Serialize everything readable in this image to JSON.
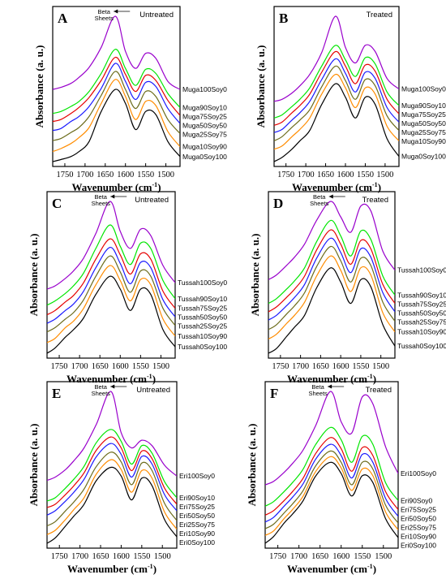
{
  "colors": [
    "#000000",
    "#ff8c00",
    "#6b6b1a",
    "#1a1aff",
    "#e60000",
    "#00e600",
    "#9900cc"
  ],
  "chart_data": [
    {
      "type": "line",
      "letter": "A",
      "condition": "Untreated",
      "xlabel": "Wavenumber (cm",
      "xlabel_sup": "-1",
      "xlabel_tail": ")",
      "ylabel": "Absorbance (a. u.)",
      "xlim": [
        1780,
        1465
      ],
      "xticks": [
        1750,
        1700,
        1650,
        1600,
        1550,
        1500
      ],
      "annotation": {
        "line1": "Beta",
        "line2": "Sheets",
        "x": 1625
      },
      "series": [
        {
          "name": "Muga0Soy100",
          "values": [
            0.0,
            0.02,
            0.05,
            0.1,
            0.2,
            0.5,
            0.72,
            0.58,
            0.32,
            0.5,
            0.47,
            0.2,
            0.05
          ]
        },
        {
          "name": "Muga10Soy90",
          "values": [
            0.1,
            0.13,
            0.18,
            0.24,
            0.34,
            0.58,
            0.82,
            0.65,
            0.42,
            0.6,
            0.56,
            0.3,
            0.15
          ]
        },
        {
          "name": "Muga25Soy75",
          "values": [
            0.21,
            0.23,
            0.29,
            0.34,
            0.45,
            0.66,
            0.9,
            0.72,
            0.53,
            0.7,
            0.65,
            0.42,
            0.28
          ]
        },
        {
          "name": "Muga50Soy50",
          "values": [
            0.31,
            0.33,
            0.4,
            0.45,
            0.55,
            0.73,
            0.98,
            0.8,
            0.62,
            0.79,
            0.75,
            0.53,
            0.38
          ]
        },
        {
          "name": "Muga75Soy25",
          "values": [
            0.4,
            0.42,
            0.48,
            0.54,
            0.64,
            0.81,
            1.04,
            0.87,
            0.7,
            0.86,
            0.81,
            0.61,
            0.46
          ]
        },
        {
          "name": "Muga90Soy10",
          "values": [
            0.48,
            0.5,
            0.55,
            0.6,
            0.7,
            0.88,
            1.12,
            0.93,
            0.76,
            0.92,
            0.88,
            0.68,
            0.54
          ]
        },
        {
          "name": "Muga100Soy0",
          "values": [
            0.72,
            0.74,
            0.78,
            0.84,
            0.94,
            1.14,
            1.45,
            1.1,
            0.93,
            1.08,
            1.03,
            0.8,
            0.72
          ]
        }
      ]
    },
    {
      "type": "line",
      "letter": "B",
      "condition": "Treated",
      "xlabel": "Wavenumber (cm",
      "xlabel_sup": "-1",
      "xlabel_tail": ")",
      "ylabel": "Absorbance (a. u.)",
      "xlim": [
        1780,
        1465
      ],
      "xticks": [
        1750,
        1700,
        1650,
        1600,
        1550,
        1500
      ],
      "annotation": null,
      "series": [
        {
          "name": "Muga0Soy100",
          "values": [
            0.0,
            0.04,
            0.12,
            0.2,
            0.3,
            0.55,
            0.75,
            0.62,
            0.42,
            0.62,
            0.55,
            0.22,
            0.05
          ]
        },
        {
          "name": "Muga10Soy90",
          "values": [
            0.12,
            0.15,
            0.24,
            0.31,
            0.42,
            0.65,
            0.84,
            0.71,
            0.52,
            0.71,
            0.65,
            0.34,
            0.2
          ]
        },
        {
          "name": "Muga25Soy75",
          "values": [
            0.2,
            0.24,
            0.33,
            0.4,
            0.5,
            0.72,
            0.92,
            0.78,
            0.6,
            0.79,
            0.73,
            0.44,
            0.3
          ]
        },
        {
          "name": "Muga50Soy50",
          "values": [
            0.28,
            0.31,
            0.4,
            0.47,
            0.58,
            0.79,
            0.99,
            0.85,
            0.67,
            0.86,
            0.8,
            0.52,
            0.38
          ]
        },
        {
          "name": "Muga75Soy25",
          "values": [
            0.35,
            0.38,
            0.47,
            0.54,
            0.65,
            0.86,
            1.06,
            0.92,
            0.75,
            0.93,
            0.87,
            0.6,
            0.46
          ]
        },
        {
          "name": "Muga90Soy10",
          "values": [
            0.42,
            0.45,
            0.53,
            0.6,
            0.71,
            0.92,
            1.12,
            0.98,
            0.82,
            1.0,
            0.94,
            0.67,
            0.54
          ]
        },
        {
          "name": "Muga100Soy0",
          "values": [
            0.58,
            0.6,
            0.66,
            0.73,
            0.84,
            1.05,
            1.4,
            1.1,
            0.95,
            1.12,
            1.06,
            0.8,
            0.7
          ]
        }
      ]
    },
    {
      "type": "line",
      "letter": "C",
      "condition": "Untreated",
      "xlabel": "Wavenumber (cm",
      "xlabel_sup": "-1",
      "xlabel_tail": ")",
      "ylabel": "Absorbance (a. u.)",
      "xlim": [
        1780,
        1465
      ],
      "xticks": [
        1750,
        1700,
        1650,
        1600,
        1550,
        1500
      ],
      "annotation": {
        "line1": "Beta",
        "line2": "Sheets",
        "x": 1620
      },
      "series": [
        {
          "name": "Tussah0Soy100",
          "values": [
            0.0,
            0.05,
            0.15,
            0.22,
            0.33,
            0.55,
            0.72,
            0.6,
            0.4,
            0.6,
            0.55,
            0.22,
            0.06
          ]
        },
        {
          "name": "Tussah10Soy90",
          "values": [
            0.1,
            0.14,
            0.24,
            0.3,
            0.42,
            0.64,
            0.82,
            0.68,
            0.49,
            0.69,
            0.64,
            0.32,
            0.16
          ]
        },
        {
          "name": "Tussah25Soy25",
          "values": [
            0.2,
            0.24,
            0.32,
            0.38,
            0.5,
            0.72,
            0.91,
            0.76,
            0.57,
            0.77,
            0.72,
            0.42,
            0.26
          ]
        },
        {
          "name": "Tussah50Soy50",
          "values": [
            0.28,
            0.32,
            0.4,
            0.46,
            0.58,
            0.8,
            0.99,
            0.84,
            0.65,
            0.85,
            0.8,
            0.5,
            0.34
          ]
        },
        {
          "name": "Tussah75Soy25",
          "values": [
            0.36,
            0.4,
            0.48,
            0.54,
            0.66,
            0.88,
            1.07,
            0.92,
            0.74,
            0.93,
            0.88,
            0.58,
            0.42
          ]
        },
        {
          "name": "Tussah90Soy10",
          "values": [
            0.45,
            0.49,
            0.56,
            0.63,
            0.75,
            0.98,
            1.2,
            1.0,
            0.83,
            1.03,
            0.98,
            0.68,
            0.51
          ]
        },
        {
          "name": "Tussah100Soy0",
          "values": [
            0.6,
            0.63,
            0.7,
            0.77,
            0.89,
            1.12,
            1.42,
            1.14,
            0.98,
            1.16,
            1.1,
            0.82,
            0.66
          ]
        }
      ]
    },
    {
      "type": "line",
      "letter": "D",
      "condition": "Treated",
      "xlabel": "Wavenumber (cm",
      "xlabel_sup": "-1",
      "xlabel_tail": ")",
      "ylabel": "Absorbance (a. u.)",
      "xlim": [
        1780,
        1465
      ],
      "xticks": [
        1750,
        1700,
        1650,
        1600,
        1550,
        1500
      ],
      "annotation": {
        "line1": "Beta",
        "line2": "Sheets",
        "x": 1625
      },
      "series": [
        {
          "name": "Tussah0Soy100",
          "values": [
            0.0,
            0.04,
            0.14,
            0.22,
            0.32,
            0.55,
            0.72,
            0.6,
            0.42,
            0.62,
            0.56,
            0.24,
            0.06
          ]
        },
        {
          "name": "Tussah10Soy90",
          "values": [
            0.12,
            0.16,
            0.25,
            0.32,
            0.43,
            0.65,
            0.82,
            0.7,
            0.52,
            0.72,
            0.66,
            0.34,
            0.18
          ]
        },
        {
          "name": "Tussah25Soy75",
          "values": [
            0.2,
            0.24,
            0.33,
            0.4,
            0.51,
            0.73,
            0.9,
            0.78,
            0.6,
            0.8,
            0.74,
            0.43,
            0.27
          ]
        },
        {
          "name": "Tussah50Soy50",
          "values": [
            0.28,
            0.32,
            0.4,
            0.47,
            0.58,
            0.8,
            0.97,
            0.85,
            0.68,
            0.88,
            0.81,
            0.51,
            0.35
          ]
        },
        {
          "name": "Tussah75Soy25",
          "values": [
            0.35,
            0.39,
            0.47,
            0.54,
            0.65,
            0.87,
            1.04,
            0.92,
            0.75,
            0.95,
            0.88,
            0.58,
            0.42
          ]
        },
        {
          "name": "Tussah90Soy10",
          "values": [
            0.42,
            0.46,
            0.54,
            0.61,
            0.72,
            0.94,
            1.12,
            0.99,
            0.82,
            1.03,
            0.96,
            0.65,
            0.49
          ]
        },
        {
          "name": "Tussah100Soy0",
          "values": [
            0.62,
            0.66,
            0.74,
            0.81,
            0.92,
            1.12,
            1.28,
            1.15,
            1.02,
            1.24,
            1.2,
            0.86,
            0.7
          ]
        }
      ]
    },
    {
      "type": "line",
      "letter": "E",
      "condition": "Untreated",
      "xlabel": "Wavenumber (cm",
      "xlabel_sup": "-1",
      "xlabel_tail": ")",
      "ylabel": "Absorbance (a. u.)",
      "xlim": [
        1780,
        1465
      ],
      "xticks": [
        1750,
        1700,
        1650,
        1600,
        1550,
        1500
      ],
      "annotation": {
        "line1": "Beta",
        "line2": "Sheets",
        "x": 1622
      },
      "series": [
        {
          "name": "Eri0Soy100",
          "values": [
            0.0,
            0.05,
            0.16,
            0.25,
            0.36,
            0.58,
            0.7,
            0.62,
            0.4,
            0.6,
            0.53,
            0.22,
            0.06
          ]
        },
        {
          "name": "Eri10Soy90",
          "values": [
            0.08,
            0.12,
            0.22,
            0.31,
            0.42,
            0.64,
            0.77,
            0.68,
            0.47,
            0.67,
            0.6,
            0.29,
            0.13
          ]
        },
        {
          "name": "Eri25Soy75",
          "values": [
            0.16,
            0.2,
            0.3,
            0.38,
            0.5,
            0.71,
            0.84,
            0.75,
            0.54,
            0.74,
            0.67,
            0.37,
            0.21
          ]
        },
        {
          "name": "Eri50Soy50",
          "values": [
            0.26,
            0.3,
            0.39,
            0.47,
            0.59,
            0.8,
            0.92,
            0.82,
            0.61,
            0.8,
            0.73,
            0.45,
            0.3
          ]
        },
        {
          "name": "Eri75Soy25",
          "values": [
            0.33,
            0.36,
            0.45,
            0.53,
            0.65,
            0.86,
            0.98,
            0.88,
            0.67,
            0.85,
            0.78,
            0.51,
            0.36
          ]
        },
        {
          "name": "Eri90Soy10",
          "values": [
            0.39,
            0.42,
            0.51,
            0.59,
            0.71,
            0.93,
            1.05,
            0.94,
            0.73,
            0.9,
            0.83,
            0.57,
            0.42
          ]
        },
        {
          "name": "Eri100Soy0",
          "values": [
            0.58,
            0.61,
            0.68,
            0.76,
            0.88,
            1.1,
            1.4,
            1.02,
            0.88,
            0.95,
            0.9,
            0.72,
            0.62
          ]
        }
      ]
    },
    {
      "type": "line",
      "letter": "F",
      "condition": "Treated",
      "xlabel": "Wavenumber (cm",
      "xlabel_sup": "-1",
      "xlabel_tail": ")",
      "ylabel": "Absorbance (a. u.)",
      "xlim": [
        1780,
        1465
      ],
      "xticks": [
        1750,
        1700,
        1650,
        1600,
        1550,
        1500
      ],
      "annotation": {
        "line1": "Beta",
        "line2": "Sheets",
        "x": 1628
      },
      "series": [
        {
          "name": "Eri0Soy100",
          "values": [
            0.0,
            0.06,
            0.18,
            0.26,
            0.38,
            0.6,
            0.72,
            0.62,
            0.42,
            0.6,
            0.54,
            0.22,
            0.05
          ]
        },
        {
          "name": "Eri10Soy90",
          "values": [
            0.07,
            0.11,
            0.22,
            0.3,
            0.42,
            0.64,
            0.77,
            0.67,
            0.47,
            0.66,
            0.6,
            0.28,
            0.12
          ]
        },
        {
          "name": "Eri25Soy75",
          "values": [
            0.13,
            0.17,
            0.27,
            0.35,
            0.47,
            0.69,
            0.82,
            0.72,
            0.52,
            0.72,
            0.66,
            0.34,
            0.18
          ]
        },
        {
          "name": "Eri50Soy50",
          "values": [
            0.19,
            0.23,
            0.33,
            0.41,
            0.53,
            0.75,
            0.88,
            0.78,
            0.58,
            0.79,
            0.72,
            0.4,
            0.24
          ]
        },
        {
          "name": "Eri75Soy25",
          "values": [
            0.25,
            0.29,
            0.38,
            0.46,
            0.58,
            0.8,
            0.94,
            0.84,
            0.64,
            0.85,
            0.78,
            0.46,
            0.3
          ]
        },
        {
          "name": "Eri90Soy0",
          "values": [
            0.33,
            0.37,
            0.46,
            0.54,
            0.66,
            0.88,
            1.03,
            0.92,
            0.72,
            0.95,
            0.88,
            0.54,
            0.38
          ]
        },
        {
          "name": "Eri100Soy0",
          "values": [
            0.52,
            0.55,
            0.63,
            0.71,
            0.83,
            1.05,
            1.35,
            1.08,
            0.98,
            1.3,
            1.24,
            0.86,
            0.62
          ]
        }
      ]
    }
  ]
}
